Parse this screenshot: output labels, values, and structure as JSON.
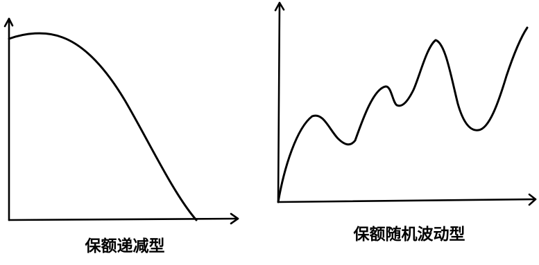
{
  "panels": [
    {
      "caption": "保额递减型"
    },
    {
      "caption": "保额随机波动型"
    }
  ]
}
